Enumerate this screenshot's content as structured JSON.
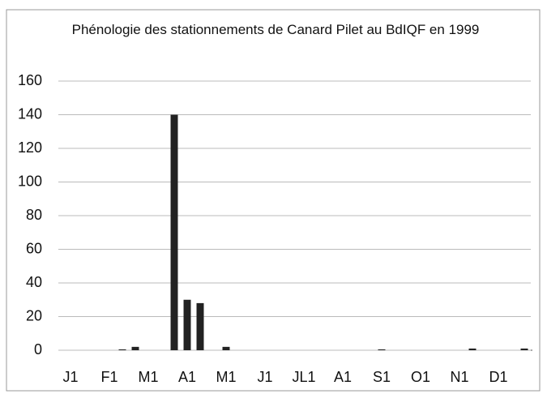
{
  "chart_data": {
    "type": "bar",
    "title": "Phénologie des stationnements de Canard Pilet au BdIQF en 1999",
    "categories": [
      "J1",
      null,
      null,
      "F1",
      null,
      null,
      "M1",
      null,
      null,
      "A1",
      null,
      null,
      "M1",
      null,
      null,
      "J1",
      null,
      null,
      "JL1",
      null,
      null,
      "A1",
      null,
      null,
      "S1",
      null,
      null,
      "O1",
      null,
      null,
      "N1",
      null,
      null,
      "D1",
      null,
      null
    ],
    "values": [
      0,
      0,
      0,
      0,
      0.5,
      2,
      0,
      0,
      140,
      30,
      28,
      0,
      2,
      0,
      0,
      0,
      0,
      0,
      0,
      0,
      0,
      0,
      0,
      0,
      0.5,
      0,
      0,
      0,
      0,
      0,
      0,
      1,
      0,
      0,
      0,
      1
    ],
    "color": "#222222",
    "ylim": [
      0,
      160
    ],
    "yticks": [
      0,
      20,
      40,
      60,
      80,
      100,
      120,
      140,
      160
    ],
    "grid": true
  }
}
